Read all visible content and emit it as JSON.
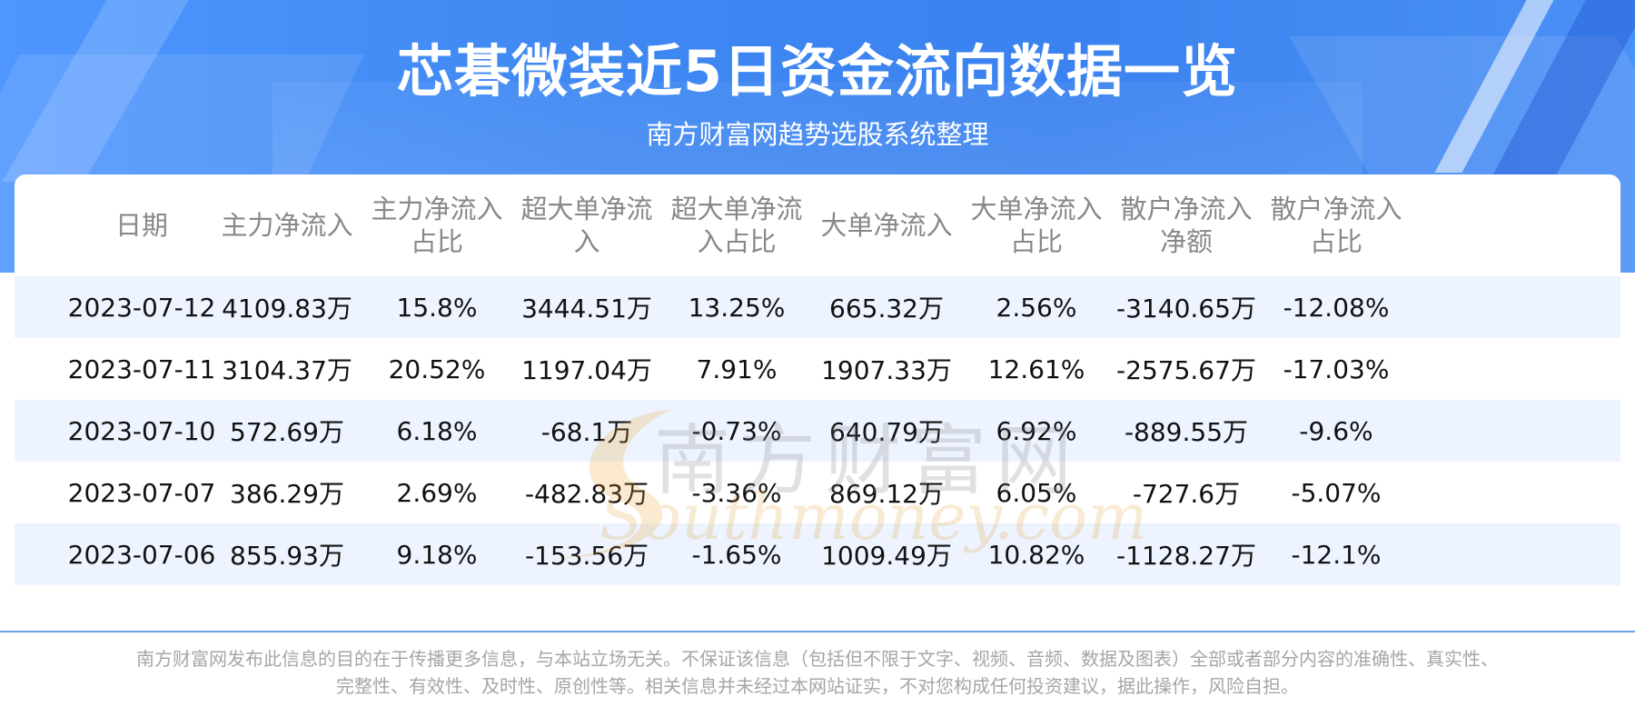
{
  "header": {
    "title": "芯碁微装近5日资金流向数据一览",
    "subtitle": "南方财富网趋势选股系统整理"
  },
  "watermark": {
    "cn": "南方财富网",
    "en": "Southmoney.com"
  },
  "chart_data": {
    "type": "table",
    "columns": [
      "日期",
      "主力净流入",
      "主力净流入占比",
      "超大单净流入",
      "超大单净流入占比",
      "大单净流入",
      "大单净流入占比",
      "散户净流入净额",
      "散户净流入占比"
    ],
    "rows": [
      [
        "2023-07-12",
        "4109.83万",
        "15.8%",
        "3444.51万",
        "13.25%",
        "665.32万",
        "2.56%",
        "-3140.65万",
        "-12.08%"
      ],
      [
        "2023-07-11",
        "3104.37万",
        "20.52%",
        "1197.04万",
        "7.91%",
        "1907.33万",
        "12.61%",
        "-2575.67万",
        "-17.03%"
      ],
      [
        "2023-07-10",
        "572.69万",
        "6.18%",
        "-68.1万",
        "-0.73%",
        "640.79万",
        "6.92%",
        "-889.55万",
        "-9.6%"
      ],
      [
        "2023-07-07",
        "386.29万",
        "2.69%",
        "-482.83万",
        "-3.36%",
        "869.12万",
        "6.05%",
        "-727.6万",
        "-5.07%"
      ],
      [
        "2023-07-06",
        "855.93万",
        "9.18%",
        "-153.56万",
        "-1.65%",
        "1009.49万",
        "10.82%",
        "-1128.27万",
        "-12.1%"
      ]
    ]
  },
  "footer": {
    "line1": "南方财富网发布此信息的目的在于传播更多信息，与本站立场无关。不保证该信息（包括但不限于文字、视频、音频、数据及图表）全部或者部分内容的准确性、真实性、",
    "line2": "完整性、有效性、及时性、原创性等。相关信息并未经过本网站证实，不对您构成任何投资建议，据此操作，风险自担。"
  },
  "colors": {
    "banner": "#3f88f2",
    "alt_row": "#edf4ff",
    "header_text": "#888888",
    "body_text": "#111111",
    "footer_text": "#a6a6a6"
  }
}
